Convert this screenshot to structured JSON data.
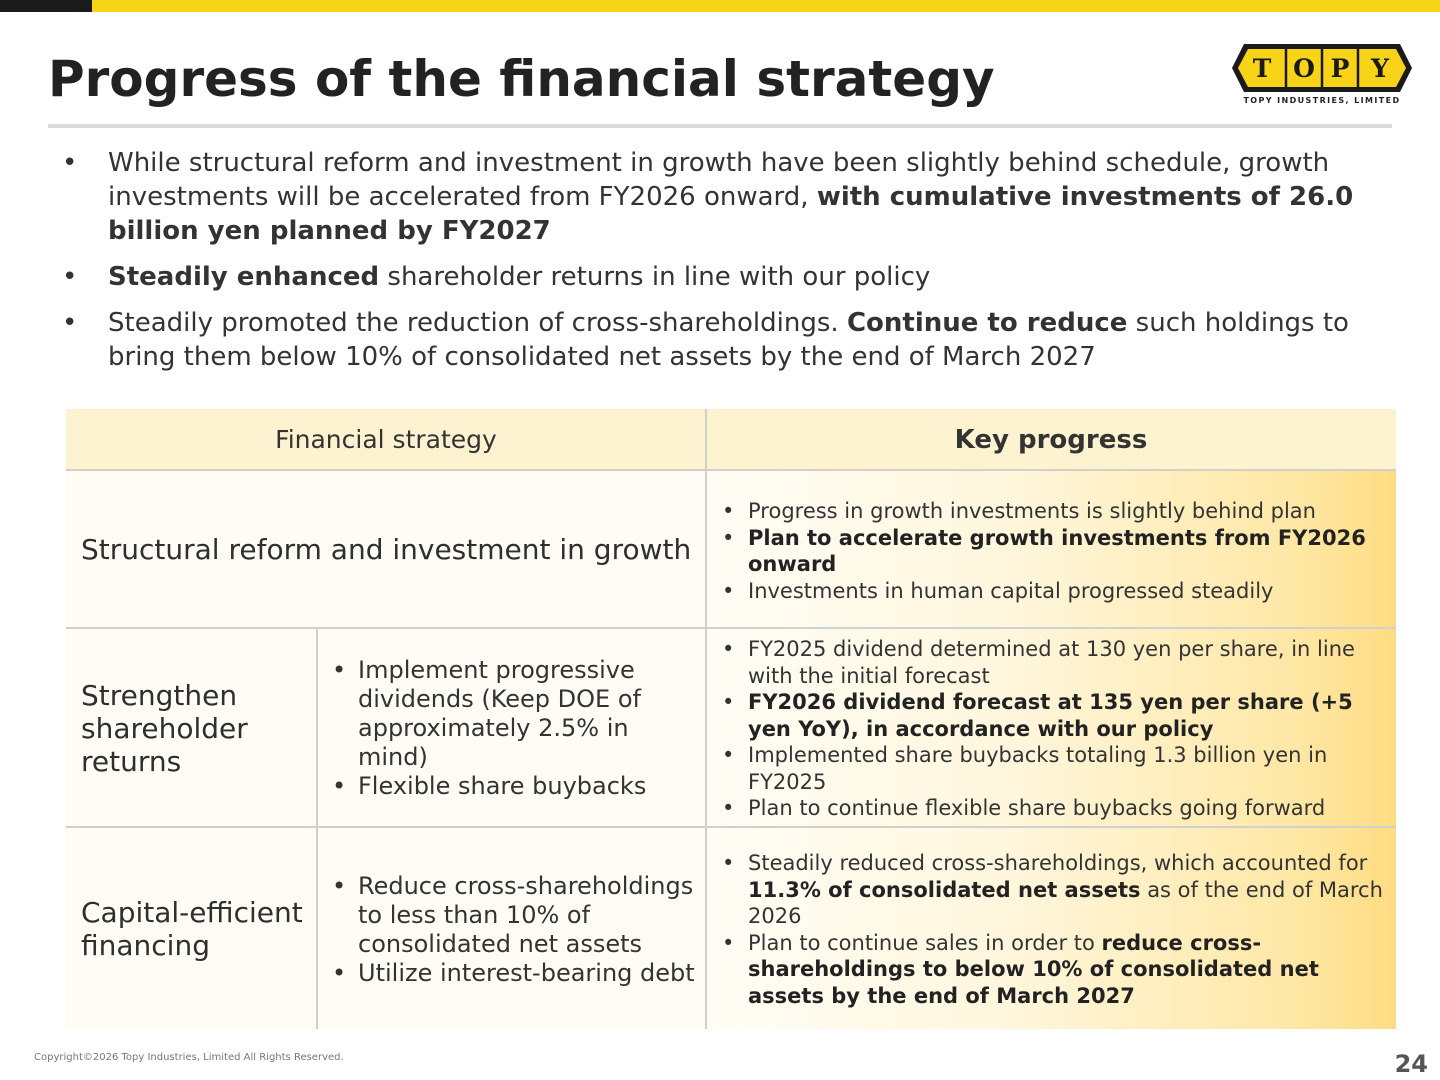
{
  "header": {
    "title": "Progress of the financial strategy",
    "logo": {
      "wordmark": [
        "T",
        "O",
        "P",
        "Y"
      ],
      "caption": "TOPY INDUSTRIES, LIMITED",
      "colors": {
        "yellow": "#f7d417",
        "black": "#1a1a1a"
      }
    }
  },
  "summary": [
    {
      "segments": [
        {
          "text": "While structural reform and investment in growth have been slightly behind schedule, growth investments will be accelerated from FY2026 onward, ",
          "bold": false
        },
        {
          "text": "with cumulative investments of 26.0 billion yen planned by FY2027",
          "bold": true
        }
      ]
    },
    {
      "segments": [
        {
          "text": "Steadily enhanced",
          "bold": true
        },
        {
          "text": " shareholder returns in line with our policy",
          "bold": false
        }
      ]
    },
    {
      "segments": [
        {
          "text": "Steadily promoted the reduction of cross-shareholdings. ",
          "bold": false
        },
        {
          "text": "Continue to reduce",
          "bold": true
        },
        {
          "text": " such holdings to bring them below 10% of consolidated net assets by the end of March 2027",
          "bold": false
        }
      ]
    }
  ],
  "table": {
    "headers": {
      "strategy": "Financial strategy",
      "progress": "Key progress"
    },
    "rows": [
      {
        "title": "Structural reform and investment in growth",
        "policies": [],
        "progress": [
          [
            {
              "text": "Progress in growth investments is slightly behind plan",
              "bold": false
            }
          ],
          [
            {
              "text": "Plan to accelerate growth investments from FY2026 onward",
              "bold": true
            }
          ],
          [
            {
              "text": "Investments in human capital progressed steadily",
              "bold": false
            }
          ]
        ]
      },
      {
        "title": "Strengthen shareholder returns",
        "policies": [
          "Implement progressive dividends (Keep DOE of approximately 2.5% in mind)",
          "Flexible share buybacks"
        ],
        "progress": [
          [
            {
              "text": "FY2025 dividend determined at 130 yen per share, in line with the initial forecast",
              "bold": false
            }
          ],
          [
            {
              "text": "FY2026 dividend forecast at 135 yen per share (+5 yen YoY), in accordance with our policy",
              "bold": true
            }
          ],
          [
            {
              "text": "Implemented share buybacks totaling 1.3 billion yen in FY2025",
              "bold": false
            }
          ],
          [
            {
              "text": "Plan to continue flexible share buybacks going forward",
              "bold": false
            }
          ]
        ]
      },
      {
        "title": "Capital-efficient financing",
        "policies": [
          "Reduce cross-shareholdings to less than 10% of consolidated net assets",
          "Utilize interest-bearing debt"
        ],
        "progress": [
          [
            {
              "text": "Steadily reduced cross-shareholdings, which accounted for ",
              "bold": false
            },
            {
              "text": "11.3% of consolidated net assets",
              "bold": true
            },
            {
              "text": " as of the end of March 2026",
              "bold": false
            }
          ],
          [
            {
              "text": "Plan to continue sales in order to ",
              "bold": false
            },
            {
              "text": "reduce cross-shareholdings to below 10% of consolidated net assets by the end of March 2027",
              "bold": true
            }
          ]
        ]
      }
    ]
  },
  "footer": {
    "copyright": "Copyright©2026 Topy Industries, Limited All Rights Reserved.",
    "page_number": "24"
  }
}
